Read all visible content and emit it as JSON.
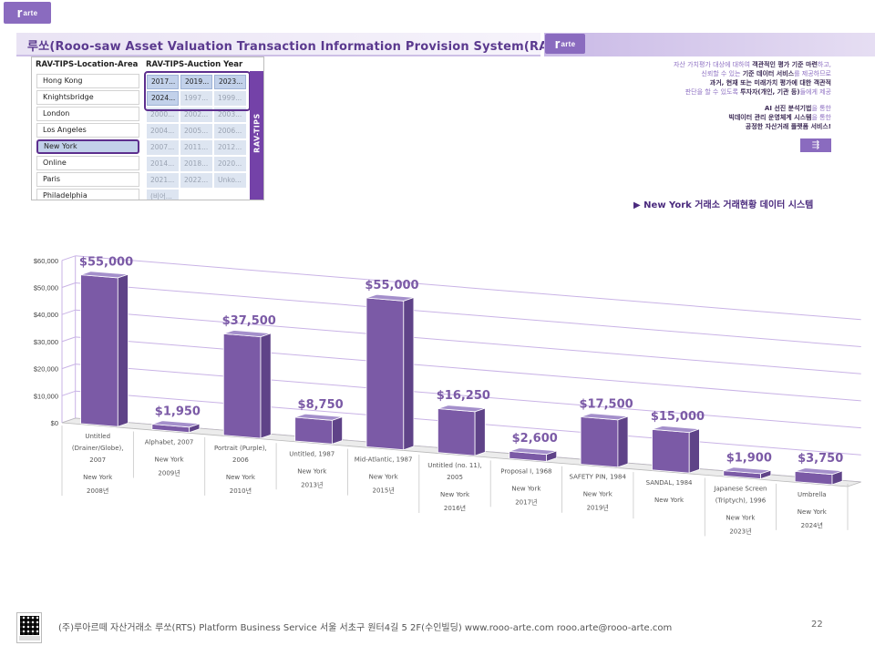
{
  "header": {
    "logo_text": "arte",
    "logo_mark": "r",
    "title": "루쏘(Rooo-saw  Asset  Valuation  Transaction  Information  Provision  System(RAV-TIPS))"
  },
  "slicer": {
    "location_header": "RAV-TIPS-Location-Area",
    "year_header": "RAV-TIPS-Auction Year",
    "side_label": "RAV-TIPS",
    "locations": [
      {
        "label": "Hong Kong",
        "selected": false
      },
      {
        "label": "Knightsbridge",
        "selected": false
      },
      {
        "label": "London",
        "selected": false
      },
      {
        "label": "Los Angeles",
        "selected": false
      },
      {
        "label": "New York",
        "selected": true
      },
      {
        "label": "Online",
        "selected": false
      },
      {
        "label": "Paris",
        "selected": false
      },
      {
        "label": "Philadelphia",
        "selected": false
      }
    ],
    "years": [
      [
        "2017...",
        "2019...",
        "2023..."
      ],
      [
        "2024...",
        "1997...",
        "1999..."
      ],
      [
        "2000...",
        "2002...",
        "2003..."
      ],
      [
        "2004...",
        "2005...",
        "2006..."
      ],
      [
        "2007...",
        "2011...",
        "2012..."
      ],
      [
        "2014...",
        "2018...",
        "2020..."
      ],
      [
        "2021...",
        "2022...",
        "Unko..."
      ],
      [
        "(비어...",
        "",
        ""
      ]
    ],
    "years_active": [
      [
        true,
        true,
        true
      ],
      [
        true,
        false,
        false
      ]
    ]
  },
  "description": {
    "lines": [
      {
        "plain1": "자산 가치평가 대상에 대하여 ",
        "bold": "객관적인 평가 기준 마련",
        "plain2": "하고,"
      },
      {
        "plain1": "신뢰할 수 있는 ",
        "bold": "기준 데이터 서비스",
        "plain2": "를 제공하므로"
      },
      {
        "plain1": "",
        "bold": "과거, 현재 또는 미래가치 평가에 대한 객관적",
        "plain2": ""
      },
      {
        "plain1": "판단을 할 수 있도록 ",
        "bold": "투자자(개인, 기관 등)",
        "plain2": "들에게 제공"
      },
      {
        "plain1": "",
        "bold": "AI 선진 분석기법",
        "plain2": "을 통한"
      },
      {
        "plain1": "",
        "bold": "빅데이터 관리 운영체계 시스템",
        "plain2": "을 통한"
      },
      {
        "plain1": "",
        "bold": "공정한 자산거래 플랫폼 서비스!",
        "plain2": ""
      }
    ]
  },
  "subtitle": "▶ New York 거래소 거래현황 데이터 시스템",
  "chart_data": {
    "type": "bar",
    "title": "",
    "xlabel": "",
    "ylabel": "",
    "ylim": [
      0,
      60000
    ],
    "yticks": [
      "$0",
      "$10,000",
      "$20,000",
      "$30,000",
      "$40,000",
      "$50,000",
      "$60,000"
    ],
    "grid": true,
    "color": "#7b5aa6",
    "categories": [
      {
        "title": "Untitled (Drainer/Globe), 2007",
        "title_lines": [
          "Untitled",
          "(Drainer/Globe),",
          "2007"
        ],
        "location": "New York",
        "year": "2008년",
        "value": 55000,
        "label": "$55,000"
      },
      {
        "title": "Alphabet, 2007",
        "title_lines": [
          "Alphabet, 2007"
        ],
        "location": "New York",
        "year": "2009년",
        "value": 1950,
        "label": "$1,950"
      },
      {
        "title": "Portrait (Purple), 2006",
        "title_lines": [
          "Portrait (Purple),",
          "2006"
        ],
        "location": "New York",
        "year": "2010년",
        "value": 37500,
        "label": "$37,500"
      },
      {
        "title": "Untitled, 1987",
        "title_lines": [
          "Untitled, 1987"
        ],
        "location": "New York",
        "year": "2013년",
        "value": 8750,
        "label": "$8,750"
      },
      {
        "title": "Mid-Atlantic, 1987",
        "title_lines": [
          "Mid-Atlantic, 1987"
        ],
        "location": "New York",
        "year": "2015년",
        "value": 55000,
        "label": "$55,000"
      },
      {
        "title": "Untitled (no. 11), 2005",
        "title_lines": [
          "Untitled (no. 11),",
          "2005"
        ],
        "location": "New York",
        "year": "2016년",
        "value": 16250,
        "label": "$16,250"
      },
      {
        "title": "Proposal I, 1968",
        "title_lines": [
          "Proposal I, 1968"
        ],
        "location": "New York",
        "year": "2017년",
        "value": 2600,
        "label": "$2,600"
      },
      {
        "title": "SAFETY PIN, 1984",
        "title_lines": [
          "SAFETY PIN, 1984"
        ],
        "location": "New York",
        "year": "2019년",
        "value": 17500,
        "label": "$17,500"
      },
      {
        "title": "SANDAL, 1984",
        "title_lines": [
          "SANDAL, 1984"
        ],
        "location": "New York",
        "year": "",
        "value": 15000,
        "label": "$15,000"
      },
      {
        "title": "Japanese Screen (Triptych), 1996",
        "title_lines": [
          "Japanese Screen",
          "(Triptych), 1996"
        ],
        "location": "New York",
        "year": "2023년",
        "value": 1900,
        "label": "$1,900"
      },
      {
        "title": "Umbrella",
        "title_lines": [
          "Umbrella"
        ],
        "location": "New York",
        "year": "2024년",
        "value": 3750,
        "label": "$3,750"
      }
    ]
  },
  "footer": {
    "text": "(주)루아르떼 자산거래소 루쏘(RTS) Platform Business Service 서울 서초구 원터4길 5 2F(수인빌딩) www.rooo-arte.com rooo.arte@rooo-arte.com",
    "page": "22"
  }
}
